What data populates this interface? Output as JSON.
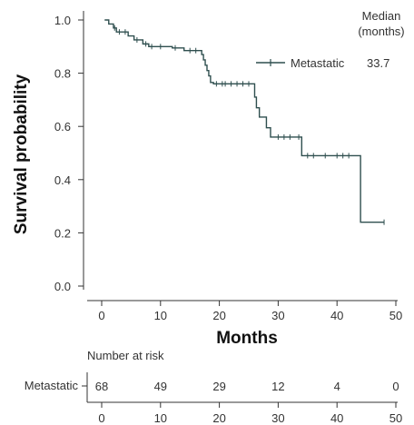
{
  "chart_data": {
    "type": "line",
    "subtype": "kaplan-meier",
    "ylabel": "Survival probability",
    "xlabel": "Months",
    "xlim": [
      0,
      50
    ],
    "ylim": [
      0,
      1
    ],
    "x_ticks": [
      0,
      10,
      20,
      30,
      40,
      50
    ],
    "y_ticks": [
      "0.0",
      "0.2",
      "0.4",
      "0.6",
      "0.8",
      "1.0"
    ],
    "grid": false,
    "legend": {
      "position": "top-right",
      "header": "Median\n(months)"
    },
    "series": [
      {
        "name": "Metastatic",
        "median": "33.7",
        "color": "#2f4f4f",
        "steps": [
          [
            0.5,
            1.0
          ],
          [
            1.2,
            0.985
          ],
          [
            2,
            0.97
          ],
          [
            2.5,
            0.955
          ],
          [
            4.5,
            0.94
          ],
          [
            5.5,
            0.925
          ],
          [
            7,
            0.91
          ],
          [
            8,
            0.9
          ],
          [
            12,
            0.895
          ],
          [
            14,
            0.885
          ],
          [
            17,
            0.87
          ],
          [
            17.3,
            0.85
          ],
          [
            17.6,
            0.83
          ],
          [
            17.9,
            0.81
          ],
          [
            18.2,
            0.79
          ],
          [
            18.5,
            0.765
          ],
          [
            19,
            0.76
          ],
          [
            26,
            0.71
          ],
          [
            26.3,
            0.67
          ],
          [
            26.8,
            0.635
          ],
          [
            28,
            0.595
          ],
          [
            28.7,
            0.56
          ],
          [
            34,
            0.49
          ],
          [
            44,
            0.24
          ],
          [
            48,
            0.24
          ]
        ],
        "censor_x": [
          2.2,
          3,
          4,
          6,
          7.5,
          8.5,
          10,
          12.5,
          15,
          16,
          19.5,
          20.5,
          21,
          22,
          23,
          24,
          25,
          30,
          31,
          32,
          33.5,
          35,
          36,
          38,
          40,
          41,
          42,
          48
        ]
      }
    ],
    "number_at_risk": {
      "title": "Number at risk",
      "group": "Metastatic",
      "times": [
        0,
        10,
        20,
        30,
        40,
        50
      ],
      "counts": [
        "68",
        "49",
        "29",
        "12",
        "4",
        "0"
      ]
    }
  }
}
